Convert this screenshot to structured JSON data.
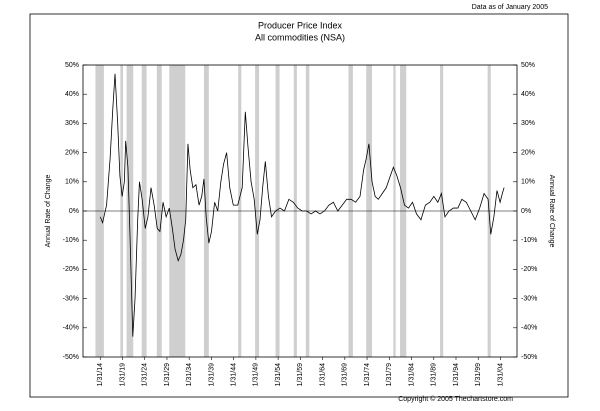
{
  "chart_data": {
    "type": "line",
    "note": "Data as of January 2005",
    "title": "Producer Price Index",
    "subtitle": "All commodities (NSA)",
    "y_label": "Annual Rate of Change",
    "footer": "Copyright © 2005 Thechartstore.com",
    "color": "#000000",
    "recession_color": "#cfcfcf",
    "xlim": [
      1910.2,
      2007.8
    ],
    "xticks": [
      {
        "value": 1914.08,
        "label": "1/31/14"
      },
      {
        "value": 1919.08,
        "label": "1/31/19"
      },
      {
        "value": 1924.08,
        "label": "1/31/24"
      },
      {
        "value": 1929.08,
        "label": "1/31/29"
      },
      {
        "value": 1934.08,
        "label": "1/31/34"
      },
      {
        "value": 1939.08,
        "label": "1/31/39"
      },
      {
        "value": 1944.08,
        "label": "1/31/44"
      },
      {
        "value": 1949.08,
        "label": "1/31/49"
      },
      {
        "value": 1954.08,
        "label": "1/31/54"
      },
      {
        "value": 1959.08,
        "label": "1/31/59"
      },
      {
        "value": 1964.08,
        "label": "1/31/64"
      },
      {
        "value": 1969.08,
        "label": "1/31/69"
      },
      {
        "value": 1974.08,
        "label": "1/31/74"
      },
      {
        "value": 1979.08,
        "label": "1/31/79"
      },
      {
        "value": 1984.08,
        "label": "1/31/84"
      },
      {
        "value": 1989.08,
        "label": "1/31/89"
      },
      {
        "value": 1994.08,
        "label": "1/31/94"
      },
      {
        "value": 1999.08,
        "label": "1/31/99"
      },
      {
        "value": 2004.08,
        "label": "1/31/04"
      }
    ],
    "ylim": [
      -50,
      50
    ],
    "yticks": [
      {
        "value": -50,
        "label": "-50%"
      },
      {
        "value": -40,
        "label": "-40%"
      },
      {
        "value": -30,
        "label": "-30%"
      },
      {
        "value": -20,
        "label": "-20%"
      },
      {
        "value": -10,
        "label": "-10%"
      },
      {
        "value": 0,
        "label": "0%"
      },
      {
        "value": 10,
        "label": "10%"
      },
      {
        "value": 20,
        "label": "20%"
      },
      {
        "value": 30,
        "label": "30%"
      },
      {
        "value": 40,
        "label": "40%"
      },
      {
        "value": 50,
        "label": "50%"
      }
    ],
    "recessions": [
      [
        1913.0,
        1914.9
      ],
      [
        1918.6,
        1919.2
      ],
      [
        1920.0,
        1921.5
      ],
      [
        1923.4,
        1924.5
      ],
      [
        1926.8,
        1927.9
      ],
      [
        1929.6,
        1933.2
      ],
      [
        1937.4,
        1938.5
      ],
      [
        1945.1,
        1945.8
      ],
      [
        1948.9,
        1949.8
      ],
      [
        1953.5,
        1954.4
      ],
      [
        1957.6,
        1958.3
      ],
      [
        1960.3,
        1961.1
      ],
      [
        1969.9,
        1970.9
      ],
      [
        1973.9,
        1975.2
      ],
      [
        1980.0,
        1980.5
      ],
      [
        1981.5,
        1982.9
      ],
      [
        1990.5,
        1991.2
      ],
      [
        2001.2,
        2001.9
      ]
    ],
    "x": [
      1914.1,
      1914.6,
      1915.5,
      1916.3,
      1916.9,
      1917.4,
      1918.0,
      1918.5,
      1919.0,
      1919.5,
      1919.8,
      1920.3,
      1920.8,
      1921.4,
      1921.9,
      1922.5,
      1922.9,
      1923.5,
      1924.2,
      1924.8,
      1925.5,
      1926.2,
      1926.9,
      1927.5,
      1928.2,
      1928.9,
      1929.6,
      1930.3,
      1930.9,
      1931.6,
      1932.2,
      1932.8,
      1933.3,
      1933.8,
      1934.3,
      1934.9,
      1935.6,
      1936.3,
      1936.9,
      1937.4,
      1937.9,
      1938.5,
      1939.1,
      1939.8,
      1940.5,
      1941.2,
      1941.8,
      1942.5,
      1943.2,
      1944.0,
      1945.0,
      1946.0,
      1946.7,
      1947.3,
      1948.0,
      1948.7,
      1949.4,
      1950.0,
      1950.6,
      1951.2,
      1951.9,
      1952.6,
      1953.5,
      1954.5,
      1955.5,
      1956.5,
      1957.5,
      1958.5,
      1959.5,
      1960.5,
      1961.5,
      1962.5,
      1963.5,
      1964.5,
      1965.5,
      1966.5,
      1967.5,
      1968.5,
      1969.5,
      1970.5,
      1971.5,
      1972.5,
      1973.3,
      1973.9,
      1974.5,
      1975.2,
      1975.9,
      1976.6,
      1977.5,
      1978.4,
      1979.3,
      1980.0,
      1980.8,
      1981.6,
      1982.5,
      1983.4,
      1984.3,
      1985.2,
      1986.2,
      1987.2,
      1988.2,
      1989.1,
      1990.0,
      1990.8,
      1991.6,
      1992.5,
      1993.5,
      1994.5,
      1995.4,
      1996.4,
      1997.4,
      1998.4,
      1999.4,
      2000.4,
      2001.3,
      2001.9,
      2002.6,
      2003.3,
      2004.0,
      2004.5,
      2004.9
    ],
    "values": [
      -2,
      -4,
      2,
      18,
      35,
      47,
      30,
      12,
      5,
      10,
      24,
      15,
      -10,
      -43,
      -30,
      -3,
      10,
      4,
      -6,
      -2,
      8,
      2,
      -6,
      -7,
      3,
      -2,
      1,
      -6,
      -13,
      -17,
      -15,
      -10,
      -3,
      23,
      14,
      8,
      9,
      2,
      5,
      11,
      -2,
      -11,
      -7,
      3,
      0,
      10,
      16,
      20,
      8,
      2,
      2,
      8,
      34,
      22,
      10,
      4,
      -8,
      -3,
      8,
      17,
      5,
      -2,
      0,
      1,
      0,
      4,
      3,
      1,
      0,
      0,
      -1,
      0,
      -1,
      0,
      2,
      3,
      0,
      2,
      4,
      4,
      3,
      5,
      14,
      18,
      23,
      10,
      5,
      4,
      6,
      8,
      12,
      15,
      12,
      8,
      2,
      1,
      3,
      -1,
      -3,
      2,
      3,
      5,
      3,
      6,
      -2,
      0,
      1,
      1,
      4,
      3,
      0,
      -3,
      1,
      6,
      4,
      -8,
      -2,
      7,
      3,
      6,
      8
    ]
  }
}
